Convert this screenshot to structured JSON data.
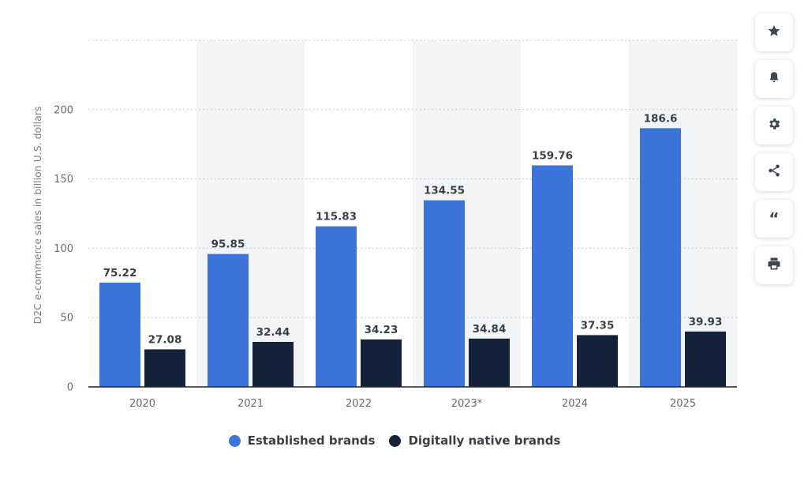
{
  "chart_data": {
    "type": "bar",
    "categories": [
      "2020",
      "2021",
      "2022",
      "2023*",
      "2024",
      "2025"
    ],
    "series": [
      {
        "name": "Established brands",
        "values": [
          75.22,
          95.85,
          115.83,
          134.55,
          159.76,
          186.6
        ],
        "labels": [
          "75.22",
          "95.85",
          "115.83",
          "134.55",
          "159.76",
          "186.6"
        ]
      },
      {
        "name": "Digitally native brands",
        "values": [
          27.08,
          32.44,
          34.23,
          34.84,
          37.35,
          39.93
        ],
        "labels": [
          "27.08",
          "32.44",
          "34.23",
          "34.84",
          "37.35",
          "39.93"
        ]
      }
    ],
    "ylabel": "D2C e-commerce sales in billion U.S. dollars",
    "xlabel": "",
    "ylim": [
      0,
      250
    ],
    "yticks": [
      0,
      50,
      100,
      150,
      200
    ],
    "grid": true,
    "legend_position": "bottom-center"
  },
  "colors": {
    "established": "#3d74d9",
    "digitally_native": "#14233a",
    "band": "#f3f4f6",
    "grid": "#c9ccd1",
    "axis": "#1f2329"
  },
  "legend": {
    "established_label": "Established brands",
    "native_label": "Digitally native brands"
  },
  "toolbar": {
    "icons": [
      "star-icon",
      "bell-icon",
      "gear-icon",
      "share-icon",
      "quote-icon",
      "print-icon"
    ]
  }
}
